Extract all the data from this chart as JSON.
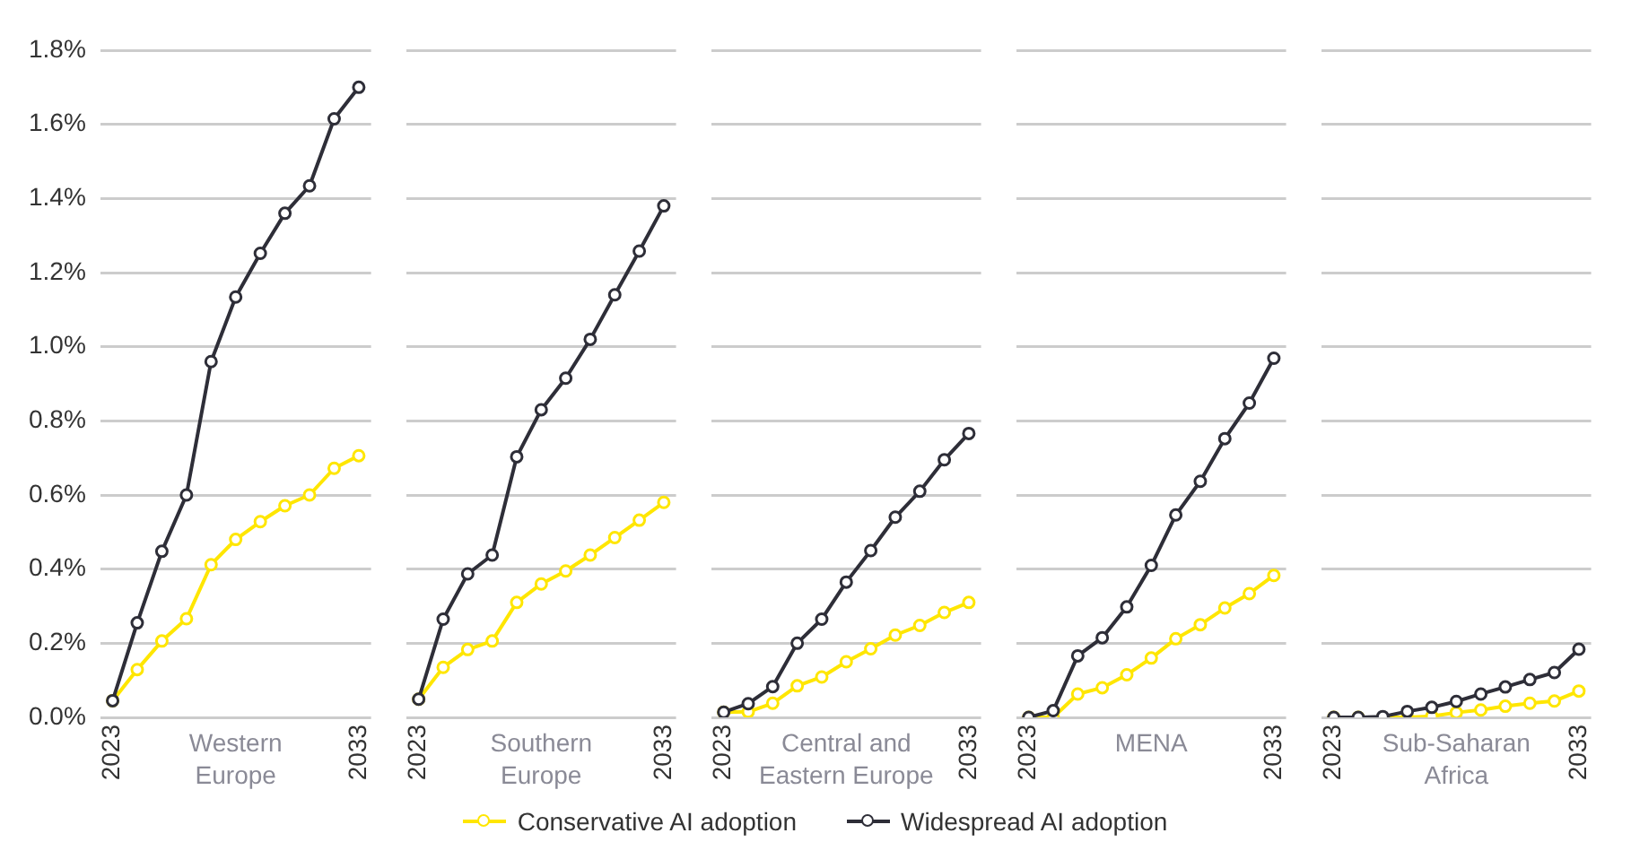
{
  "chart_data": [
    {
      "type": "line",
      "xlabel": "Western Europe",
      "categories": [
        "2023",
        null,
        null,
        null,
        null,
        null,
        null,
        null,
        null,
        null,
        "2033"
      ],
      "ylim": [
        0,
        1.8
      ],
      "yticks": [
        {
          "value": 0,
          "label": "0.0%"
        },
        {
          "value": 0.2,
          "label": "0.2%"
        },
        {
          "value": 0.4,
          "label": "0.4%"
        },
        {
          "value": 0.6,
          "label": "0.6%"
        },
        {
          "value": 0.8,
          "label": "0.8%"
        },
        {
          "value": 1.0,
          "label": "1.0%"
        },
        {
          "value": 1.2,
          "label": "1.2%"
        },
        {
          "value": 1.4,
          "label": "1.4%"
        },
        {
          "value": 1.6,
          "label": "1.6%"
        },
        {
          "value": 1.8,
          "label": "1.8%"
        }
      ],
      "grid": "y",
      "marker": "circle",
      "legend": "bottom",
      "series": [
        {
          "name": "Conservative AI adoption",
          "color": "#ffe600",
          "values": [
            0.045,
            0.129,
            0.206,
            0.266,
            0.412,
            0.48,
            0.528,
            0.571,
            0.6,
            0.672,
            0.706
          ]
        },
        {
          "name": "Widespread AI adoption",
          "color": "#2e2e38",
          "values": [
            0.045,
            0.255,
            0.448,
            0.6,
            0.96,
            1.134,
            1.252,
            1.36,
            1.434,
            1.615,
            1.7
          ]
        }
      ]
    },
    {
      "type": "line",
      "xlabel": "Southern Europe",
      "categories": [
        "2023",
        null,
        null,
        null,
        null,
        null,
        null,
        null,
        null,
        null,
        "2033"
      ],
      "ylim": [
        0,
        1.8
      ],
      "yticks": [
        0,
        0.2,
        0.4,
        0.6,
        0.8,
        1.0,
        1.2,
        1.4,
        1.6,
        1.8
      ],
      "tick_labels": "x",
      "grid": "y",
      "marker": "circle",
      "series": [
        {
          "color": "#ffe600",
          "values": [
            0.049,
            0.135,
            0.183,
            0.206,
            0.31,
            0.36,
            0.395,
            0.438,
            0.485,
            0.532,
            0.58
          ]
        },
        {
          "color": "#2e2e38",
          "values": [
            0.049,
            0.265,
            0.387,
            0.438,
            0.703,
            0.83,
            0.915,
            1.02,
            1.14,
            1.258,
            1.38
          ]
        }
      ]
    },
    {
      "type": "line",
      "xlabel": "Central and Eastern Europe",
      "categories": [
        "2023",
        null,
        null,
        null,
        null,
        null,
        null,
        null,
        null,
        null,
        "2033"
      ],
      "ylim": [
        0,
        1.8
      ],
      "yticks": [
        0,
        0.2,
        0.4,
        0.6,
        0.8,
        1.0,
        1.2,
        1.4,
        1.6,
        1.8
      ],
      "tick_labels": "x",
      "grid": "y",
      "marker": "circle",
      "series": [
        {
          "color": "#ffe600",
          "values": [
            0.014,
            0.015,
            0.038,
            0.085,
            0.109,
            0.15,
            0.185,
            0.222,
            0.248,
            0.283,
            0.31
          ]
        },
        {
          "color": "#2e2e38",
          "values": [
            0.014,
            0.037,
            0.083,
            0.2,
            0.265,
            0.365,
            0.45,
            0.54,
            0.61,
            0.695,
            0.766
          ]
        }
      ]
    },
    {
      "type": "line",
      "xlabel": "MENA",
      "categories": [
        "2023",
        null,
        null,
        null,
        null,
        null,
        null,
        null,
        null,
        null,
        "2033"
      ],
      "ylim": [
        0,
        1.8
      ],
      "yticks": [
        0,
        0.2,
        0.4,
        0.6,
        0.8,
        1.0,
        1.2,
        1.4,
        1.6,
        1.8
      ],
      "tick_labels": "x",
      "grid": "y",
      "marker": "circle",
      "series": [
        {
          "color": "#ffe600",
          "values": [
            0,
            0,
            0.063,
            0.08,
            0.115,
            0.16,
            0.212,
            0.25,
            0.295,
            0.334,
            0.383
          ]
        },
        {
          "color": "#2e2e38",
          "values": [
            0,
            0.018,
            0.166,
            0.215,
            0.298,
            0.41,
            0.546,
            0.637,
            0.752,
            0.848,
            0.969
          ]
        }
      ]
    },
    {
      "type": "line",
      "xlabel": "Sub-Saharan Africa",
      "categories": [
        "2023",
        null,
        null,
        null,
        null,
        null,
        null,
        null,
        null,
        null,
        "2033"
      ],
      "ylim": [
        0,
        1.8
      ],
      "yticks": [
        0,
        0.2,
        0.4,
        0.6,
        0.8,
        1.0,
        1.2,
        1.4,
        1.6,
        1.8
      ],
      "tick_labels": "x",
      "grid": "y",
      "marker": "circle",
      "series": [
        {
          "color": "#ffe600",
          "values": [
            0,
            0,
            0,
            0,
            0.003,
            0.013,
            0.02,
            0.03,
            0.038,
            0.044,
            0.071
          ]
        },
        {
          "color": "#2e2e38",
          "values": [
            0,
            0,
            0.002,
            0.016,
            0.027,
            0.043,
            0.063,
            0.082,
            0.102,
            0.121,
            0.184
          ]
        }
      ]
    }
  ]
}
